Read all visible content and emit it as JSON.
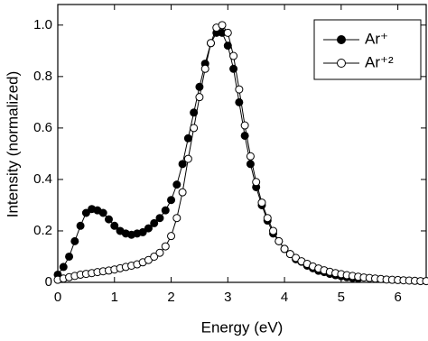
{
  "chart_data": {
    "type": "line",
    "xlabel": "Energy (eV)",
    "ylabel": "Intensity (normalized)",
    "x": [
      0,
      0.1,
      0.2,
      0.3,
      0.4,
      0.5,
      0.6,
      0.7,
      0.8,
      0.9,
      1.0,
      1.1,
      1.2,
      1.3,
      1.4,
      1.5,
      1.6,
      1.7,
      1.8,
      1.9,
      2.0,
      2.1,
      2.2,
      2.3,
      2.4,
      2.5,
      2.6,
      2.7,
      2.8,
      2.9,
      3.0,
      3.1,
      3.2,
      3.3,
      3.4,
      3.5,
      3.6,
      3.7,
      3.8,
      3.9,
      4.0,
      4.1,
      4.2,
      4.3,
      4.4,
      4.5,
      4.6,
      4.7,
      4.8,
      4.9,
      5.0,
      5.1,
      5.2,
      5.3,
      5.4,
      5.5,
      5.6,
      5.7,
      5.8,
      5.9,
      6.0,
      6.1,
      6.2,
      6.3,
      6.4,
      6.5
    ],
    "series": [
      {
        "name": "Ar⁺",
        "color": "#000000",
        "marker": "filled",
        "values": [
          0.03,
          0.06,
          0.1,
          0.16,
          0.22,
          0.27,
          0.285,
          0.28,
          0.27,
          0.245,
          0.22,
          0.2,
          0.19,
          0.185,
          0.19,
          0.195,
          0.21,
          0.23,
          0.25,
          0.28,
          0.32,
          0.38,
          0.46,
          0.56,
          0.66,
          0.76,
          0.85,
          0.93,
          0.97,
          0.97,
          0.92,
          0.83,
          0.7,
          0.57,
          0.46,
          0.37,
          0.3,
          0.24,
          0.19,
          0.16,
          0.13,
          0.11,
          0.09,
          0.08,
          0.065,
          0.055,
          0.045,
          0.04,
          0.033,
          0.028,
          0.024,
          0.02,
          0.017,
          0.015,
          null,
          null,
          null,
          null,
          null,
          null,
          null,
          null,
          null,
          null,
          null,
          null
        ]
      },
      {
        "name": "Ar⁺²",
        "color": "#000000",
        "marker": "open",
        "values": [
          0.01,
          0.015,
          0.02,
          0.025,
          0.03,
          0.033,
          0.036,
          0.04,
          0.043,
          0.046,
          0.05,
          0.055,
          0.06,
          0.065,
          0.07,
          0.078,
          0.087,
          0.1,
          0.115,
          0.14,
          0.18,
          0.25,
          0.35,
          0.48,
          0.6,
          0.72,
          0.83,
          0.93,
          0.99,
          1.0,
          0.97,
          0.88,
          0.75,
          0.61,
          0.49,
          0.39,
          0.31,
          0.25,
          0.2,
          0.16,
          0.13,
          0.11,
          0.095,
          0.082,
          0.072,
          0.062,
          0.054,
          0.047,
          0.041,
          0.036,
          0.032,
          0.028,
          0.025,
          0.022,
          0.019,
          0.017,
          0.015,
          0.013,
          0.011,
          0.01,
          0.009,
          0.008,
          0.007,
          0.006,
          0.005,
          0.005
        ]
      }
    ],
    "xlim": [
      0,
      6.5
    ],
    "xticks": [
      0,
      1,
      2,
      3,
      4,
      5,
      6
    ],
    "ylim": [
      0,
      1.08
    ],
    "yticks": [
      0,
      0.2,
      0.4,
      0.6,
      0.8,
      {
        "value": 1.0,
        "label": "1.0"
      }
    ],
    "legend": "upper right",
    "grid": false
  }
}
